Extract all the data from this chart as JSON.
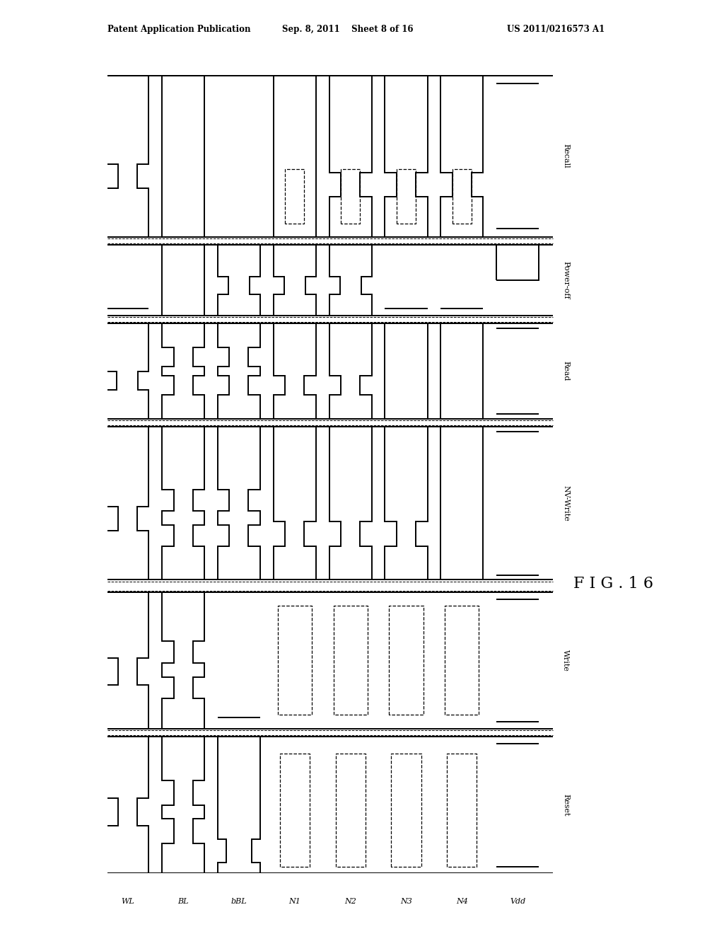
{
  "header_left": "Patent Application Publication",
  "header_center": "Sep. 8, 2011    Sheet 8 of 16",
  "header_right": "US 2011/0216573 A1",
  "fig_label": "FIG.16",
  "signals": [
    "WL",
    "BL",
    "bBL",
    "N1",
    "N2",
    "N3",
    "N4",
    "Vdd"
  ],
  "modes_bottom_to_top": [
    "Reset",
    "Write",
    "NV-Write",
    "Read",
    "Power-off",
    "Recall"
  ],
  "bg_color": "#ffffff",
  "lc": "#000000",
  "lw": 1.4,
  "dlw": 0.9
}
